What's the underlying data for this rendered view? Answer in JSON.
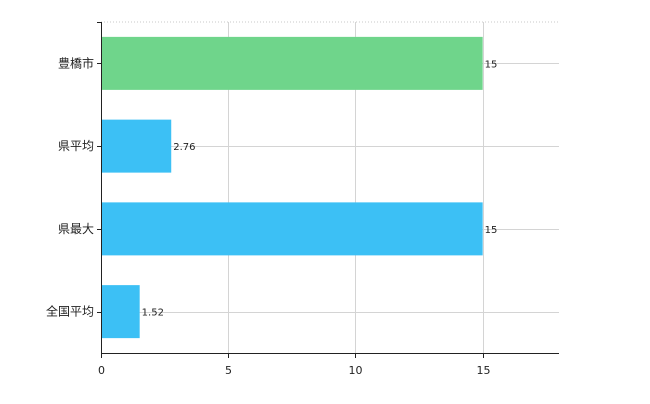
{
  "chart_data": {
    "type": "bar",
    "orientation": "horizontal",
    "categories": [
      "豊橋市",
      "県平均",
      "県最大",
      "全国平均"
    ],
    "values": [
      15,
      2.76,
      15,
      1.52
    ],
    "value_labels": [
      "15",
      "2.76",
      "15",
      "1.52"
    ],
    "bar_colors": [
      "#6fd58b",
      "#3cc0f5",
      "#3cc0f5",
      "#3cc0f5"
    ],
    "xlim": [
      0,
      18
    ],
    "xticks": [
      0,
      5,
      10,
      15
    ],
    "xtick_labels": [
      "0",
      "5",
      "10",
      "15"
    ],
    "grid": true,
    "title": "",
    "xlabel": "",
    "ylabel": ""
  }
}
